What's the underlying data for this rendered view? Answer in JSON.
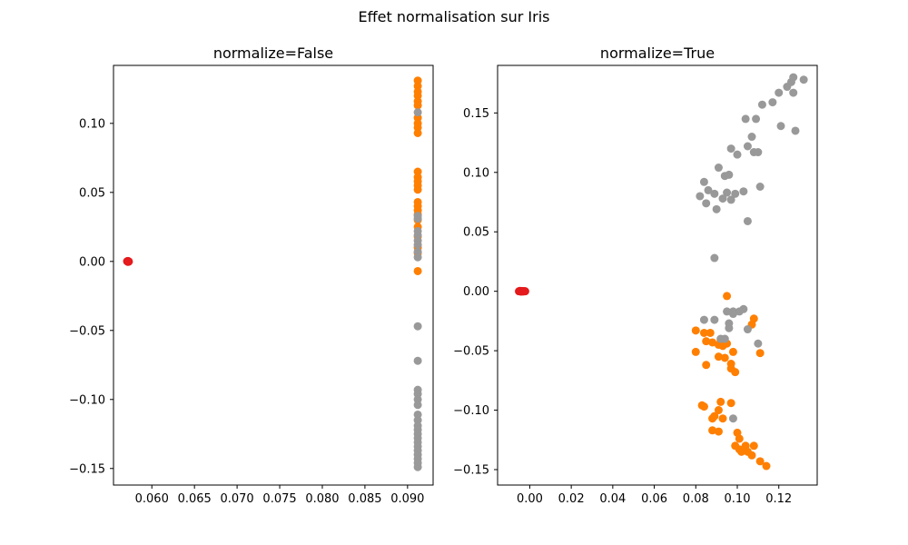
{
  "figure": {
    "title": "Effet normalisation sur Iris"
  },
  "colors": {
    "class0": "#e41a1c",
    "class1": "#ff7f00",
    "class2": "#999999",
    "axes": "#000000"
  },
  "chart_data": [
    {
      "type": "scatter",
      "title": "normalize=False",
      "xlabel": "",
      "ylabel": "",
      "xlim": [
        0.0555,
        0.093
      ],
      "ylim": [
        -0.162,
        0.142
      ],
      "xticks": [
        0.06,
        0.065,
        0.07,
        0.075,
        0.08,
        0.085,
        0.09
      ],
      "xticklabels": [
        "0.060",
        "0.065",
        "0.070",
        "0.075",
        "0.080",
        "0.085",
        "0.090"
      ],
      "yticks": [
        -0.15,
        -0.1,
        -0.05,
        0.0,
        0.05,
        0.1
      ],
      "yticklabels": [
        "−0.15",
        "−0.10",
        "−0.05",
        "0.00",
        "0.05",
        "0.10"
      ],
      "grid": false,
      "series": [
        {
          "color_key": "class0",
          "points": [
            [
              0.0572,
              0.0
            ],
            [
              0.0572,
              0.0003
            ],
            [
              0.0572,
              -0.0003
            ],
            [
              0.0571,
              0.0001
            ],
            [
              0.0573,
              -0.0001
            ],
            [
              0.0572,
              0.0002
            ],
            [
              0.0572,
              -0.0002
            ]
          ]
        },
        {
          "color_key": "class1",
          "points": [
            [
              0.0912,
              0.131
            ],
            [
              0.0912,
              0.127
            ],
            [
              0.0912,
              0.123
            ],
            [
              0.0912,
              0.12
            ],
            [
              0.0912,
              0.116
            ],
            [
              0.0912,
              0.113
            ],
            [
              0.0912,
              0.104
            ],
            [
              0.0912,
              0.1
            ],
            [
              0.0912,
              0.097
            ],
            [
              0.0912,
              0.093
            ],
            [
              0.0912,
              0.065
            ],
            [
              0.0912,
              0.061
            ],
            [
              0.0912,
              0.058
            ],
            [
              0.0912,
              0.055
            ],
            [
              0.0912,
              0.052
            ],
            [
              0.0912,
              0.043
            ],
            [
              0.0912,
              0.04
            ],
            [
              0.0912,
              0.037
            ],
            [
              0.0912,
              0.034
            ],
            [
              0.0912,
              0.03
            ],
            [
              0.0912,
              0.025
            ],
            [
              0.0912,
              0.018
            ],
            [
              0.0912,
              0.01
            ],
            [
              0.0912,
              0.006
            ],
            [
              0.0912,
              -0.007
            ]
          ]
        },
        {
          "color_key": "class2",
          "points": [
            [
              0.0912,
              0.108
            ],
            [
              0.0912,
              0.033
            ],
            [
              0.0912,
              0.031
            ],
            [
              0.0912,
              0.022
            ],
            [
              0.0912,
              0.019
            ],
            [
              0.0912,
              0.015
            ],
            [
              0.0912,
              0.012
            ],
            [
              0.0912,
              0.007
            ],
            [
              0.0912,
              0.003
            ],
            [
              0.0912,
              -0.047
            ],
            [
              0.0912,
              -0.072
            ],
            [
              0.0912,
              -0.093
            ],
            [
              0.0912,
              -0.096
            ],
            [
              0.0912,
              -0.1
            ],
            [
              0.0912,
              -0.104
            ],
            [
              0.0912,
              -0.111
            ],
            [
              0.0912,
              -0.115
            ],
            [
              0.0912,
              -0.119
            ],
            [
              0.0912,
              -0.122
            ],
            [
              0.0912,
              -0.125
            ],
            [
              0.0912,
              -0.128
            ],
            [
              0.0912,
              -0.131
            ],
            [
              0.0912,
              -0.134
            ],
            [
              0.0912,
              -0.137
            ],
            [
              0.0912,
              -0.14
            ],
            [
              0.0912,
              -0.143
            ],
            [
              0.0912,
              -0.146
            ],
            [
              0.0912,
              -0.149
            ]
          ]
        }
      ]
    },
    {
      "type": "scatter",
      "title": "normalize=True",
      "xlabel": "",
      "ylabel": "",
      "xlim": [
        -0.0155,
        0.1385
      ],
      "ylim": [
        -0.163,
        0.19
      ],
      "xticks": [
        0.0,
        0.02,
        0.04,
        0.06,
        0.08,
        0.1,
        0.12
      ],
      "xticklabels": [
        "0.00",
        "0.02",
        "0.04",
        "0.06",
        "0.08",
        "0.10",
        "0.12"
      ],
      "yticks": [
        -0.15,
        -0.1,
        -0.05,
        0.0,
        0.05,
        0.1,
        0.15
      ],
      "yticklabels": [
        "−0.15",
        "−0.10",
        "−0.05",
        "0.00",
        "0.05",
        "0.10",
        "0.15"
      ],
      "grid": false,
      "series": [
        {
          "color_key": "class0",
          "points": [
            [
              -0.0052,
              0.0
            ],
            [
              -0.0047,
              0.0003
            ],
            [
              -0.0042,
              -0.0003
            ],
            [
              -0.0037,
              0.0002
            ],
            [
              -0.0032,
              -0.0002
            ],
            [
              -0.0027,
              0.0001
            ],
            [
              -0.0022,
              0.0
            ]
          ]
        },
        {
          "color_key": "class1",
          "points": [
            [
              0.095,
              -0.004
            ],
            [
              0.108,
              -0.023
            ],
            [
              0.107,
              -0.028
            ],
            [
              0.08,
              -0.033
            ],
            [
              0.084,
              -0.035
            ],
            [
              0.087,
              -0.035
            ],
            [
              0.092,
              -0.041
            ],
            [
              0.085,
              -0.042
            ],
            [
              0.088,
              -0.043
            ],
            [
              0.091,
              -0.045
            ],
            [
              0.093,
              -0.046
            ],
            [
              0.095,
              -0.044
            ],
            [
              0.08,
              -0.051
            ],
            [
              0.098,
              -0.051
            ],
            [
              0.111,
              -0.052
            ],
            [
              0.091,
              -0.055
            ],
            [
              0.094,
              -0.056
            ],
            [
              0.085,
              -0.062
            ],
            [
              0.097,
              -0.061
            ],
            [
              0.097,
              -0.065
            ],
            [
              0.099,
              -0.068
            ],
            [
              0.092,
              -0.093
            ],
            [
              0.097,
              -0.094
            ],
            [
              0.084,
              -0.097
            ],
            [
              0.083,
              -0.096
            ],
            [
              0.091,
              -0.1
            ],
            [
              0.089,
              -0.105
            ],
            [
              0.088,
              -0.107
            ],
            [
              0.093,
              -0.107
            ],
            [
              0.1,
              -0.119
            ],
            [
              0.101,
              -0.124
            ],
            [
              0.088,
              -0.117
            ],
            [
              0.091,
              -0.118
            ],
            [
              0.104,
              -0.13
            ],
            [
              0.108,
              -0.13
            ],
            [
              0.099,
              -0.13
            ],
            [
              0.101,
              -0.133
            ],
            [
              0.105,
              -0.135
            ],
            [
              0.107,
              -0.138
            ],
            [
              0.102,
              -0.135
            ],
            [
              0.111,
              -0.143
            ],
            [
              0.114,
              -0.147
            ]
          ]
        },
        {
          "color_key": "class2",
          "points": [
            [
              0.132,
              0.178
            ],
            [
              0.127,
              0.18
            ],
            [
              0.126,
              0.176
            ],
            [
              0.124,
              0.172
            ],
            [
              0.127,
              0.167
            ],
            [
              0.12,
              0.167
            ],
            [
              0.117,
              0.159
            ],
            [
              0.112,
              0.157
            ],
            [
              0.104,
              0.145
            ],
            [
              0.109,
              0.145
            ],
            [
              0.121,
              0.139
            ],
            [
              0.128,
              0.135
            ],
            [
              0.107,
              0.13
            ],
            [
              0.105,
              0.122
            ],
            [
              0.097,
              0.12
            ],
            [
              0.1,
              0.115
            ],
            [
              0.108,
              0.117
            ],
            [
              0.11,
              0.117
            ],
            [
              0.091,
              0.104
            ],
            [
              0.094,
              0.097
            ],
            [
              0.096,
              0.098
            ],
            [
              0.084,
              0.092
            ],
            [
              0.086,
              0.085
            ],
            [
              0.089,
              0.082
            ],
            [
              0.095,
              0.083
            ],
            [
              0.099,
              0.082
            ],
            [
              0.103,
              0.084
            ],
            [
              0.111,
              0.088
            ],
            [
              0.082,
              0.08
            ],
            [
              0.093,
              0.078
            ],
            [
              0.097,
              0.077
            ],
            [
              0.085,
              0.074
            ],
            [
              0.09,
              0.069
            ],
            [
              0.105,
              0.059
            ],
            [
              0.089,
              0.028
            ],
            [
              0.103,
              -0.015
            ],
            [
              0.101,
              -0.017
            ],
            [
              0.095,
              -0.017
            ],
            [
              0.098,
              -0.017
            ],
            [
              0.098,
              -0.019
            ],
            [
              0.084,
              -0.024
            ],
            [
              0.089,
              -0.024
            ],
            [
              0.096,
              -0.027
            ],
            [
              0.096,
              -0.031
            ],
            [
              0.105,
              -0.032
            ],
            [
              0.092,
              -0.04
            ],
            [
              0.094,
              -0.04
            ],
            [
              0.11,
              -0.044
            ],
            [
              0.098,
              -0.107
            ]
          ]
        }
      ]
    }
  ]
}
